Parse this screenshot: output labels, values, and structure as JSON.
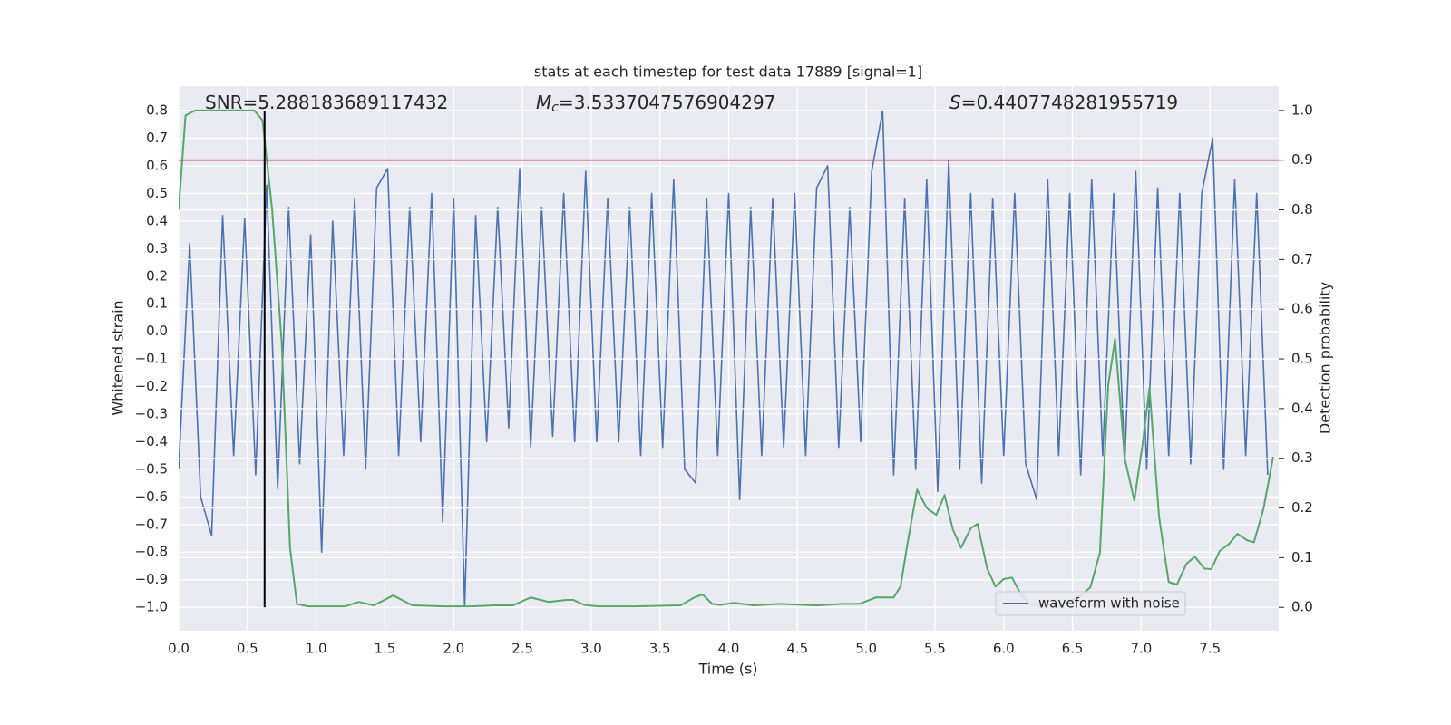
{
  "chart_data": {
    "type": "line",
    "title": "stats at each timestep for test data 17889 [signal=1]",
    "x_label": "Time (s)",
    "y_label": "Whitened strain",
    "y2_label": "Detection probability",
    "annotations": [
      {
        "text": "SNR=5.288183689117432"
      },
      {
        "symbol": "M",
        "subscript": "c",
        "text": "=3.5337047576904297"
      },
      {
        "symbol": "S",
        "text": "=0.4407748281955719"
      }
    ],
    "xlim": [
      0,
      8
    ],
    "ylim": [
      -1.085,
      0.889
    ],
    "y2lim": [
      -0.047,
      1.049
    ],
    "xticks": [
      {
        "value": 0,
        "label": "0.0"
      },
      0.5,
      {
        "value": 1,
        "label": "1.0"
      },
      1.5,
      {
        "value": 2,
        "label": "2.0"
      },
      2.5,
      {
        "value": 3,
        "label": "3.0"
      },
      3.5,
      {
        "value": 4,
        "label": "4.0"
      },
      4.5,
      {
        "value": 5,
        "label": "5.0"
      },
      5.5,
      {
        "value": 6,
        "label": "6.0"
      },
      6.5,
      {
        "value": 7,
        "label": "7.0"
      },
      7.5
    ],
    "yticks": [
      {
        "value": -1.0,
        "label": "−1.0"
      },
      {
        "value": -0.9,
        "label": "−0.9"
      },
      {
        "value": -0.8,
        "label": "−0.8"
      },
      {
        "value": -0.7,
        "label": "−0.7"
      },
      {
        "value": -0.6,
        "label": "−0.6"
      },
      {
        "value": -0.5,
        "label": "−0.5"
      },
      {
        "value": -0.4,
        "label": "−0.4"
      },
      {
        "value": -0.3,
        "label": "−0.3"
      },
      {
        "value": -0.2,
        "label": "−0.2"
      },
      {
        "value": -0.1,
        "label": "−0.1"
      },
      {
        "value": 0,
        "label": "0.0"
      },
      0.1,
      0.2,
      0.3,
      0.4,
      0.5,
      0.6,
      0.7,
      0.8
    ],
    "y2ticks": [
      {
        "value": 0,
        "label": "0.0"
      },
      0.1,
      0.2,
      0.3,
      0.4,
      0.5,
      0.6,
      0.7,
      0.8,
      0.9,
      {
        "value": 1,
        "label": "1.0"
      }
    ],
    "grid": true,
    "legend": "lower right",
    "series": [
      {
        "name": "waveform with noise",
        "color": "#4c72b0",
        "x": [
          0,
          0.08,
          0.16,
          0.24,
          0.32,
          0.4,
          0.48,
          0.56,
          0.64,
          0.72,
          0.8,
          0.88,
          0.96,
          1.04,
          1.12,
          1.2,
          1.28,
          1.36,
          1.44,
          1.52,
          1.6,
          1.68,
          1.76,
          1.84,
          1.92,
          2.0,
          2.08,
          2.16,
          2.24,
          2.32,
          2.4,
          2.48,
          2.56,
          2.64,
          2.72,
          2.8,
          2.88,
          2.96,
          3.04,
          3.12,
          3.2,
          3.28,
          3.36,
          3.44,
          3.52,
          3.6,
          3.68,
          3.76,
          3.84,
          3.92,
          4.0,
          4.08,
          4.16,
          4.24,
          4.32,
          4.4,
          4.48,
          4.56,
          4.64,
          4.72,
          4.8,
          4.88,
          4.96,
          5.04,
          5.12,
          5.2,
          5.28,
          5.36,
          5.44,
          5.52,
          5.6,
          5.68,
          5.76,
          5.84,
          5.92,
          6.0,
          6.08,
          6.16,
          6.24,
          6.32,
          6.4,
          6.48,
          6.56,
          6.64,
          6.72,
          6.8,
          6.88,
          6.96,
          7.04,
          7.12,
          7.2,
          7.28,
          7.36,
          7.44,
          7.52,
          7.6,
          7.68,
          7.76,
          7.84,
          7.92
        ],
        "values": [
          -0.5,
          0.32,
          -0.6,
          -0.74,
          0.42,
          -0.45,
          0.41,
          -0.52,
          0.53,
          -0.57,
          0.45,
          -0.48,
          0.35,
          -0.8,
          0.4,
          -0.45,
          0.48,
          -0.5,
          0.52,
          0.59,
          -0.45,
          0.45,
          -0.4,
          0.5,
          -0.69,
          0.48,
          -1.0,
          0.42,
          -0.4,
          0.45,
          -0.35,
          0.59,
          -0.42,
          0.45,
          -0.38,
          0.5,
          -0.4,
          0.58,
          -0.4,
          0.48,
          -0.4,
          0.45,
          -0.45,
          0.5,
          -0.42,
          0.55,
          -0.5,
          -0.55,
          0.48,
          -0.45,
          0.5,
          -0.61,
          0.45,
          -0.45,
          0.48,
          -0.42,
          0.5,
          -0.45,
          0.52,
          0.6,
          -0.42,
          0.45,
          -0.4,
          0.58,
          0.8,
          -0.52,
          0.48,
          -0.5,
          0.55,
          -0.58,
          0.62,
          -0.5,
          0.5,
          -0.55,
          0.48,
          -0.45,
          0.5,
          -0.48,
          -0.61,
          0.55,
          -0.45,
          0.5,
          -0.52,
          0.55,
          -0.45,
          0.5,
          -0.48,
          0.58,
          -0.5,
          0.52,
          -0.45,
          0.5,
          -0.48,
          0.5,
          0.7,
          -0.5,
          0.55,
          -0.45,
          0.5,
          -0.52
        ]
      },
      {
        "color": "#55a868",
        "axis": "y2",
        "x": [
          0,
          0.05,
          0.12,
          0.55,
          0.61,
          0.68,
          0.75,
          0.81,
          0.86,
          0.94,
          1.21,
          1.31,
          1.42,
          1.56,
          1.7,
          1.93,
          2.13,
          2.3,
          2.43,
          2.56,
          2.69,
          2.82,
          2.87,
          2.95,
          3.05,
          3.32,
          3.65,
          3.75,
          3.81,
          3.88,
          3.94,
          4.04,
          4.18,
          4.37,
          4.64,
          4.83,
          4.95,
          5.07,
          5.2,
          5.25,
          5.3,
          5.37,
          5.44,
          5.51,
          5.57,
          5.63,
          5.69,
          5.76,
          5.81,
          5.88,
          5.94,
          6.0,
          6.06,
          6.13,
          6.19,
          6.27,
          6.39,
          6.48,
          6.56,
          6.63,
          6.7,
          6.76,
          6.81,
          6.88,
          6.95,
          7.01,
          7.06,
          7.13,
          7.2,
          7.26,
          7.33,
          7.39,
          7.46,
          7.51,
          7.57,
          7.64,
          7.7,
          7.77,
          7.82,
          7.89,
          7.96
        ],
        "values": [
          0.8,
          0.99,
          1.0,
          1.0,
          0.98,
          0.8,
          0.53,
          0.12,
          0.007,
          0.002,
          0.002,
          0.011,
          0.004,
          0.024,
          0.004,
          0.002,
          0.002,
          0.004,
          0.004,
          0.02,
          0.011,
          0.015,
          0.015,
          0.005,
          0.002,
          0.002,
          0.004,
          0.02,
          0.026,
          0.007,
          0.005,
          0.009,
          0.004,
          0.007,
          0.004,
          0.007,
          0.007,
          0.02,
          0.02,
          0.042,
          0.128,
          0.237,
          0.2,
          0.186,
          0.226,
          0.157,
          0.12,
          0.159,
          0.168,
          0.078,
          0.042,
          0.057,
          0.06,
          0.024,
          0.007,
          0.004,
          0.005,
          0.011,
          0.024,
          0.04,
          0.11,
          0.447,
          0.54,
          0.3,
          0.215,
          0.328,
          0.442,
          0.182,
          0.051,
          0.046,
          0.088,
          0.102,
          0.078,
          0.077,
          0.113,
          0.128,
          0.148,
          0.135,
          0.131,
          0.199,
          0.303
        ]
      }
    ],
    "hlines": [
      {
        "y": 0.9,
        "axis": "y2",
        "color": "#c44e52"
      }
    ],
    "vlines": [
      {
        "x": 0.625,
        "ymin": -1.0,
        "ymax": 0.8,
        "color": "#000000"
      }
    ]
  }
}
